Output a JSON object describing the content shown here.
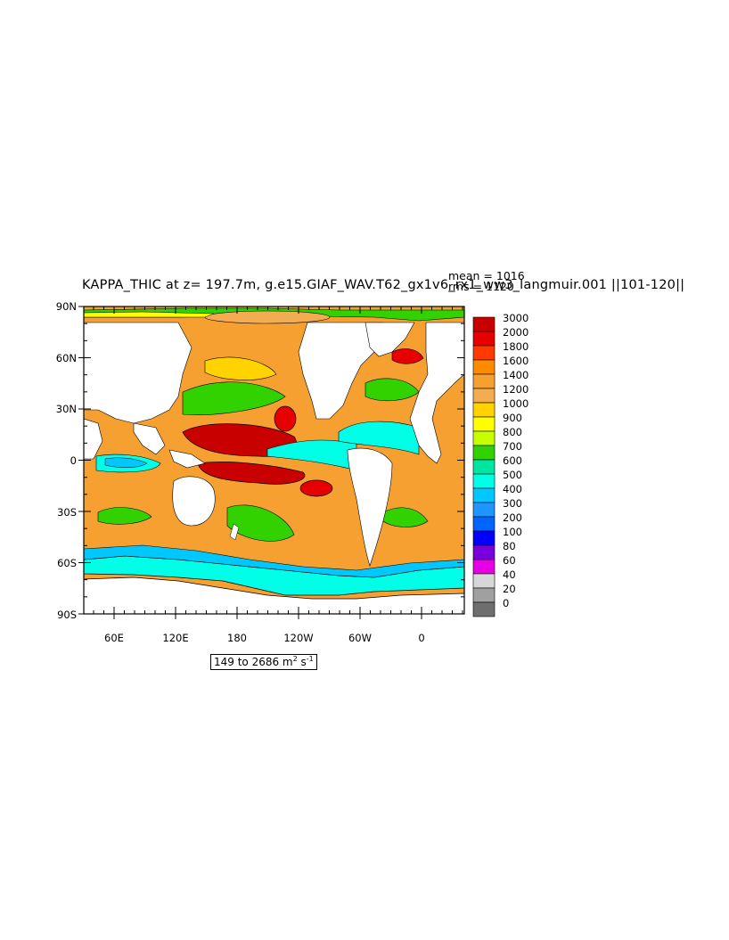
{
  "title": "KAPPA_THIC at z= 197.7m, g.e15.GIAF_WAV.T62_gx1v6_rx1_ww3_langmuir.001  ||101-120||",
  "stats": {
    "mean": "mean = 1016",
    "rms": "rms = 1120"
  },
  "lat_labels": [
    "90N",
    "60N",
    "30N",
    "0",
    "30S",
    "60S",
    "90S"
  ],
  "lon_labels": [
    "60E",
    "120E",
    "180",
    "120W",
    "60W",
    "0"
  ],
  "colorbar": {
    "levels": [
      "3000",
      "2000",
      "1800",
      "1600",
      "1400",
      "1200",
      "1000",
      "900",
      "800",
      "700",
      "600",
      "500",
      "400",
      "300",
      "200",
      "100",
      "80",
      "60",
      "40",
      "20",
      "0"
    ],
    "colors": [
      "#c80000",
      "#e60000",
      "#ff3a00",
      "#ff8c00",
      "#f6a032",
      "#f4ac50",
      "#ffd200",
      "#ffff00",
      "#c8ff00",
      "#32d200",
      "#00e6a0",
      "#00ffe6",
      "#00c8ff",
      "#1e96ff",
      "#0064ff",
      "#0000ff",
      "#7800dc",
      "#e600e6",
      "#d7d7d7",
      "#a0a0a0",
      "#6e6e6e"
    ]
  },
  "range_text": {
    "prefix": "149 to 2686 m",
    "sup1": "2",
    "mid": " s",
    "sup2": "-1"
  },
  "palette": {
    "land": "#ffffff",
    "ocean_base": "#f6a032",
    "southern_ocean": "#00ffe6"
  }
}
